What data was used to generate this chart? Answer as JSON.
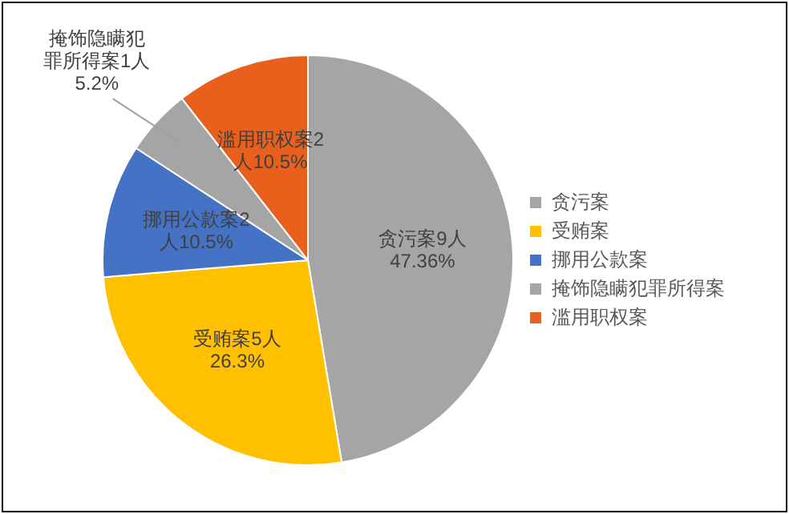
{
  "chart_data": {
    "type": "pie",
    "categories": [
      "贪污案",
      "受贿案",
      "挪用公款案",
      "掩饰隐瞒犯罪所得案",
      "滥用职权案"
    ],
    "values": [
      9,
      5,
      2,
      1,
      2
    ],
    "colors": [
      "#a5a5a5",
      "#ffc000",
      "#4472c4",
      "#a5a5a5",
      "#e8601c"
    ],
    "value_labels": [
      "贪污案9人47.36%",
      "受贿案5人26.3%",
      "挪用公款案2人10.5%",
      "掩饰隐瞒犯罪所得案1人5.2%",
      "滥用职权案2人10.5%"
    ],
    "legend": "right"
  }
}
